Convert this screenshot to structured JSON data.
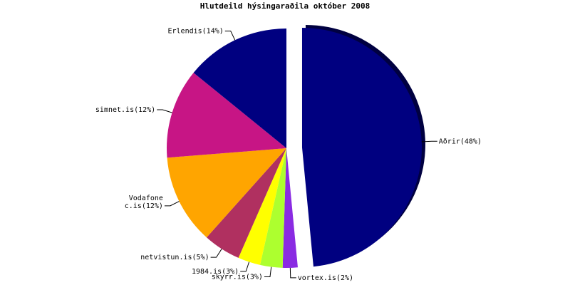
{
  "chart_data": {
    "type": "pie",
    "title": "Hlutdeild hýsingaraðila október 2008",
    "values": [
      48,
      2,
      3,
      3,
      5,
      12,
      12,
      14
    ],
    "value_labels": [
      "Aðrir(48%)",
      "vortex.is(2%)",
      "skyrr.is(3%)",
      "1984.is(3%)",
      "netvistun.is(5%)",
      "Vodafone\nc.is(12%)",
      "simnet.is(12%)",
      "Erlendis(14%)"
    ],
    "colors": [
      "#000080",
      "#8a2be2",
      "#adff2f",
      "#ffff00",
      "#b03060",
      "#ffa500",
      "#c71585",
      "#000080"
    ],
    "exploded": [
      0
    ]
  }
}
